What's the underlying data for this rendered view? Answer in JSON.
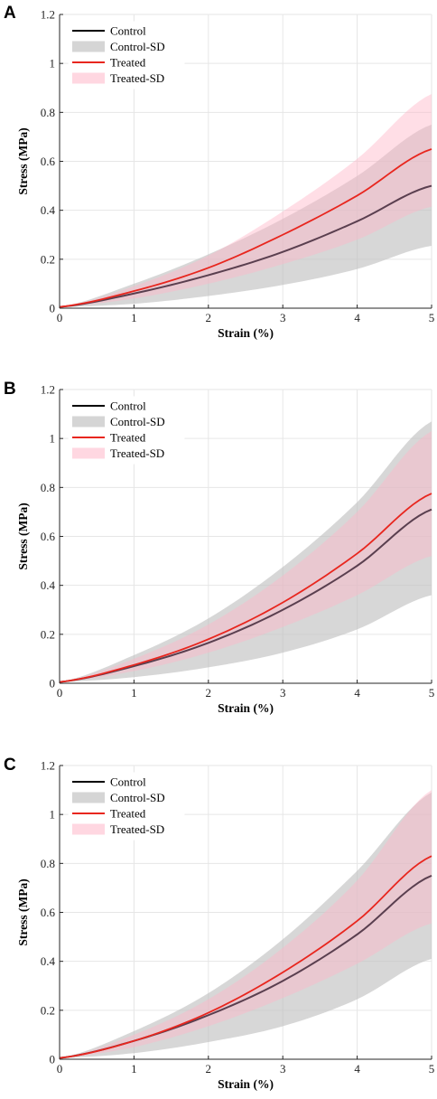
{
  "colors": {
    "control_line": "#000000",
    "control_band": "#bfbfbf",
    "treated_line": "#e8261e",
    "treated_band": "#ffb6c8",
    "overlap_line": "#5a3f4f"
  },
  "chart_data": [
    {
      "panel": "A",
      "type": "line",
      "xlabel": "Strain (%)",
      "ylabel": "Stress (MPa)",
      "xlim": [
        0,
        5
      ],
      "ylim": [
        0,
        1.2
      ],
      "xticks": [
        0,
        1,
        2,
        3,
        4,
        5
      ],
      "yticks": [
        0,
        0.2,
        0.4,
        0.6,
        0.8,
        1,
        1.2
      ],
      "xtick_labels": [
        "0",
        "1",
        "2",
        "3",
        "4",
        "5"
      ],
      "ytick_labels": [
        "0",
        "0.2",
        "0.4",
        "0.6",
        "0.8",
        "1",
        "1.2"
      ],
      "grid": true,
      "legend_position": "top-left",
      "legend": [
        "Control",
        "Control-SD",
        "Treated",
        "Treated-SD"
      ],
      "x": [
        0,
        1,
        2,
        3,
        4,
        5
      ],
      "series": [
        {
          "name": "Control",
          "kind": "line",
          "values": [
            0.005,
            0.06,
            0.135,
            0.23,
            0.355,
            0.5
          ]
        },
        {
          "name": "Control-SD",
          "kind": "band",
          "lower": [
            0.005,
            0.018,
            0.05,
            0.095,
            0.16,
            0.255
          ],
          "upper": [
            0.005,
            0.1,
            0.22,
            0.365,
            0.54,
            0.75
          ]
        },
        {
          "name": "Treated",
          "kind": "line",
          "values": [
            0.005,
            0.07,
            0.165,
            0.3,
            0.46,
            0.65
          ]
        },
        {
          "name": "Treated-SD",
          "kind": "band",
          "lower": [
            0.005,
            0.04,
            0.1,
            0.18,
            0.28,
            0.415
          ],
          "upper": [
            0.005,
            0.09,
            0.215,
            0.395,
            0.61,
            0.875
          ]
        }
      ]
    },
    {
      "panel": "B",
      "type": "line",
      "xlabel": "Strain (%)",
      "ylabel": "Stress (MPa)",
      "xlim": [
        0,
        5
      ],
      "ylim": [
        0,
        1.2
      ],
      "xticks": [
        0,
        1,
        2,
        3,
        4,
        5
      ],
      "yticks": [
        0,
        0.2,
        0.4,
        0.6,
        0.8,
        1,
        1.2
      ],
      "xtick_labels": [
        "0",
        "1",
        "2",
        "3",
        "4",
        "5"
      ],
      "ytick_labels": [
        "0",
        "0.2",
        "0.4",
        "0.6",
        "0.8",
        "1",
        "1.2"
      ],
      "grid": true,
      "legend_position": "top-left",
      "legend": [
        "Control",
        "Control-SD",
        "Treated",
        "Treated-SD"
      ],
      "x": [
        0,
        1,
        2,
        3,
        4,
        5
      ],
      "series": [
        {
          "name": "Control",
          "kind": "line",
          "values": [
            0.005,
            0.07,
            0.165,
            0.3,
            0.48,
            0.71
          ]
        },
        {
          "name": "Control-SD",
          "kind": "band",
          "lower": [
            0.005,
            0.025,
            0.065,
            0.125,
            0.22,
            0.36
          ],
          "upper": [
            0.005,
            0.115,
            0.265,
            0.475,
            0.74,
            1.07
          ]
        },
        {
          "name": "Treated",
          "kind": "line",
          "values": [
            0.005,
            0.075,
            0.18,
            0.33,
            0.53,
            0.775
          ]
        },
        {
          "name": "Treated-SD",
          "kind": "band",
          "lower": [
            0.005,
            0.05,
            0.125,
            0.23,
            0.36,
            0.52
          ],
          "upper": [
            0.005,
            0.1,
            0.24,
            0.44,
            0.7,
            1.03
          ]
        }
      ]
    },
    {
      "panel": "C",
      "type": "line",
      "xlabel": "Strain (%)",
      "ylabel": "Stress (MPa)",
      "xlim": [
        0,
        5
      ],
      "ylim": [
        0,
        1.2
      ],
      "xticks": [
        0,
        1,
        2,
        3,
        4,
        5
      ],
      "yticks": [
        0,
        0.2,
        0.4,
        0.6,
        0.8,
        1,
        1.2
      ],
      "xtick_labels": [
        "0",
        "1",
        "2",
        "3",
        "4",
        "5"
      ],
      "ytick_labels": [
        "0",
        "0.2",
        "0.4",
        "0.6",
        "0.8",
        "1",
        "1.2"
      ],
      "grid": true,
      "legend_position": "top-left",
      "legend": [
        "Control",
        "Control-SD",
        "Treated",
        "Treated-SD"
      ],
      "x": [
        0,
        1,
        2,
        3,
        4,
        5
      ],
      "series": [
        {
          "name": "Control",
          "kind": "line",
          "values": [
            0.005,
            0.075,
            0.18,
            0.32,
            0.51,
            0.75
          ]
        },
        {
          "name": "Control-SD",
          "kind": "band",
          "lower": [
            0.005,
            0.025,
            0.07,
            0.135,
            0.245,
            0.41
          ],
          "upper": [
            0.005,
            0.115,
            0.27,
            0.49,
            0.77,
            1.09
          ]
        },
        {
          "name": "Treated",
          "kind": "line",
          "values": [
            0.005,
            0.075,
            0.19,
            0.355,
            0.565,
            0.83
          ]
        },
        {
          "name": "Treated-SD",
          "kind": "band",
          "lower": [
            0.005,
            0.05,
            0.135,
            0.25,
            0.39,
            0.555
          ],
          "upper": [
            0.005,
            0.1,
            0.245,
            0.455,
            0.73,
            1.1
          ]
        }
      ]
    }
  ]
}
